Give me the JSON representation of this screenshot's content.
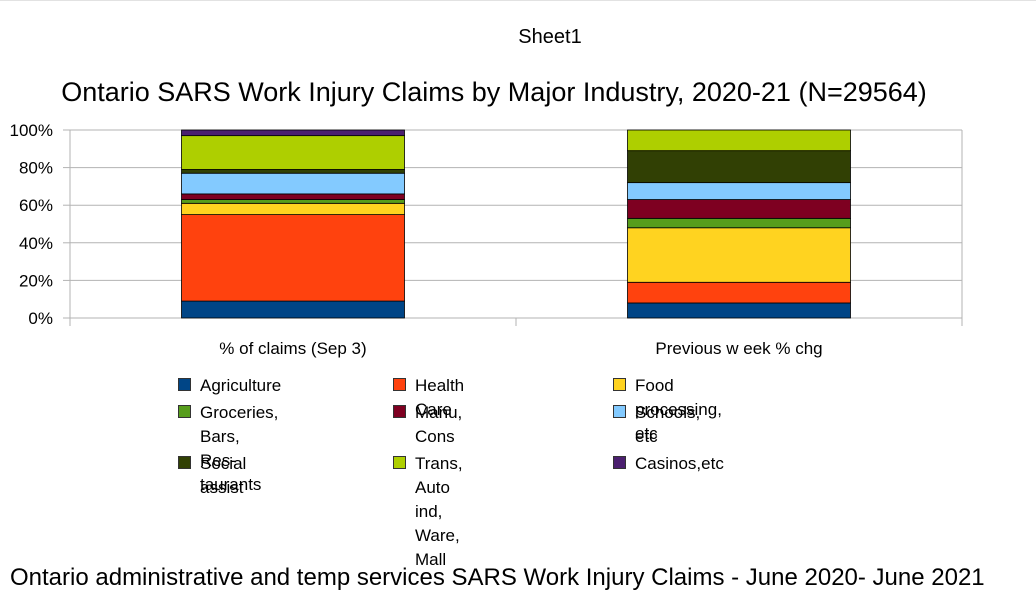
{
  "sheet_title": "Sheet1",
  "footer_text": "Ontario administrative and temp services SARS Work Injury Claims - June 2020- June 2021",
  "chart_data": {
    "type": "bar",
    "stacked": true,
    "percent_stacked": true,
    "title": "Ontario SARS Work Injury Claims by Major Industry, 2020-21 (N=29564)",
    "xlabel": "",
    "ylabel": "",
    "ylim": [
      0,
      100
    ],
    "yticks": [
      "0%",
      "20%",
      "40%",
      "60%",
      "80%",
      "100%"
    ],
    "grid": true,
    "legend_position": "bottom",
    "categories": [
      "% of claims (Sep 3)",
      "Previous w eek % chg"
    ],
    "series": [
      {
        "name": "Agriculture",
        "color": "#004586",
        "values": [
          9,
          8
        ]
      },
      {
        "name": "Health Care",
        "color": "#ff420e",
        "values": [
          46,
          11
        ]
      },
      {
        "name": "Food processing, etc",
        "color": "#ffd320",
        "values": [
          6,
          29
        ]
      },
      {
        "name": "Groceries, Bars, Res-taurants",
        "color": "#579d1c",
        "values": [
          2,
          5
        ]
      },
      {
        "name": "Manu, Cons",
        "color": "#7e0021",
        "values": [
          3,
          10
        ]
      },
      {
        "name": "Schools, etc",
        "color": "#83caff",
        "values": [
          11,
          9
        ]
      },
      {
        "name": "Social assist",
        "color": "#314004",
        "values": [
          2,
          17
        ]
      },
      {
        "name": "Trans, Auto ind, Ware, Mall",
        "color": "#aecf00",
        "values": [
          18,
          11
        ]
      },
      {
        "name": "Casinos,etc",
        "color": "#4b1f6f",
        "values": [
          3,
          0
        ]
      }
    ],
    "legend_rows": [
      [
        "Agriculture",
        "Health Care",
        "Food processing, etc"
      ],
      [
        [
          "Groceries, Bars, Res-",
          "taurants"
        ],
        "Manu, Cons",
        "Schools, etc"
      ],
      [
        "Social assist",
        [
          "Trans, Auto ind, Ware,",
          "Mall"
        ],
        "Casinos,etc"
      ]
    ]
  }
}
